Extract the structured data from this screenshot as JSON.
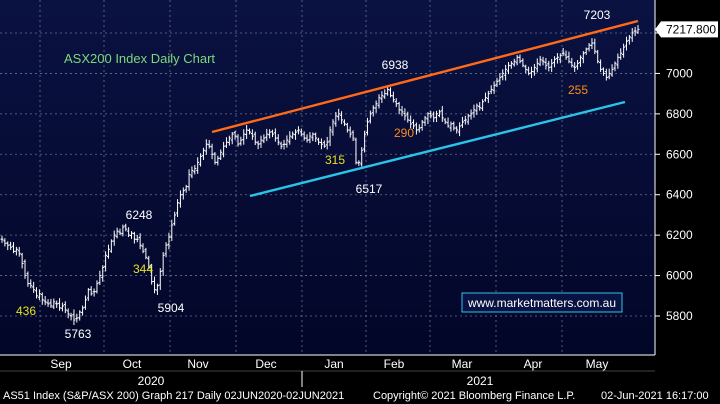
{
  "chart_data": {
    "type": "ohlc",
    "title": "ASX200 Index Daily Chart",
    "watermark": "www.marketmatters.com.au",
    "last_price_label": "7217.800",
    "y_ticks": [
      5800,
      6000,
      6200,
      6400,
      6600,
      6800,
      7000,
      7200
    ],
    "ylim": [
      5740,
      7270
    ],
    "months": [
      "Sep",
      "Oct",
      "Nov",
      "Dec",
      "Jan",
      "Feb",
      "Mar",
      "Apr",
      "May"
    ],
    "years": [
      "2020",
      "2021"
    ],
    "annotations": {
      "peaks_lows": [
        "436",
        "5763",
        "6248",
        "344",
        "5904",
        "315",
        "6517",
        "6938",
        "290",
        "7203",
        "255"
      ]
    },
    "trendlines": [
      {
        "name": "upper channel",
        "color": "#ff6a1a",
        "from": [
          "Nov-early",
          6710
        ],
        "to": [
          "Jun-02",
          7260
        ]
      },
      {
        "name": "lower channel",
        "color": "#29c4e8",
        "from": [
          "Dec-early",
          6390
        ],
        "to": [
          "May-end",
          6860
        ]
      }
    ],
    "closes": [
      6180,
      6160,
      6150,
      6140,
      6120,
      6130,
      6110,
      6060,
      6000,
      5960,
      5950,
      5930,
      5900,
      5910,
      5880,
      5870,
      5860,
      5850,
      5870,
      5860,
      5840,
      5850,
      5830,
      5810,
      5800,
      5780,
      5790,
      5820,
      5840,
      5880,
      5930,
      5910,
      5920,
      5960,
      6000,
      6040,
      6100,
      6130,
      6170,
      6200,
      6220,
      6210,
      6240,
      6230,
      6200,
      6210,
      6180,
      6180,
      6150,
      6120,
      6090,
      6040,
      5970,
      5930,
      5950,
      6020,
      6100,
      6150,
      6190,
      6250,
      6300,
      6360,
      6400,
      6420,
      6440,
      6500,
      6520,
      6530,
      6560,
      6590,
      6620,
      6650,
      6640,
      6600,
      6560,
      6580,
      6610,
      6640,
      6660,
      6680,
      6700,
      6690,
      6650,
      6670,
      6700,
      6720,
      6710,
      6690,
      6660,
      6650,
      6670,
      6680,
      6700,
      6710,
      6700,
      6680,
      6660,
      6640,
      6650,
      6670,
      6690,
      6700,
      6710,
      6720,
      6700,
      6680,
      6670,
      6690,
      6700,
      6680,
      6660,
      6650,
      6640,
      6660,
      6720,
      6760,
      6790,
      6800,
      6770,
      6750,
      6720,
      6700,
      6680,
      6560,
      6560,
      6620,
      6700,
      6760,
      6800,
      6830,
      6850,
      6880,
      6890,
      6900,
      6920,
      6890,
      6870,
      6850,
      6820,
      6810,
      6790,
      6770,
      6750,
      6740,
      6720,
      6730,
      6760,
      6780,
      6800,
      6790,
      6780,
      6800,
      6810,
      6780,
      6760,
      6740,
      6750,
      6730,
      6720,
      6740,
      6760,
      6770,
      6790,
      6800,
      6820,
      6840,
      6830,
      6860,
      6880,
      6900,
      6920,
      6940,
      6960,
      6980,
      7000,
      7020,
      7040,
      7050,
      7060,
      7080,
      7060,
      7040,
      7020,
      7000,
      7010,
      7030,
      7050,
      7070,
      7060,
      7040,
      7030,
      7050,
      7070,
      7080,
      7090,
      7100,
      7080,
      7060,
      7040,
      7030,
      7050,
      7080,
      7100,
      7120,
      7140,
      7150,
      7110,
      7060,
      7020,
      7000,
      6980,
      7000,
      7020,
      7050,
      7080,
      7100,
      7130,
      7160,
      7180,
      7200,
      7210,
      7217.8
    ]
  },
  "footer": {
    "left": "AS51 Index (S&P/ASX 200) Graph 217  Daily 02JUN2020-02JUN2021",
    "center": "Copyright© 2021 Bloomberg Finance L.P.",
    "right": "02-Jun-2021 16:17:00"
  }
}
